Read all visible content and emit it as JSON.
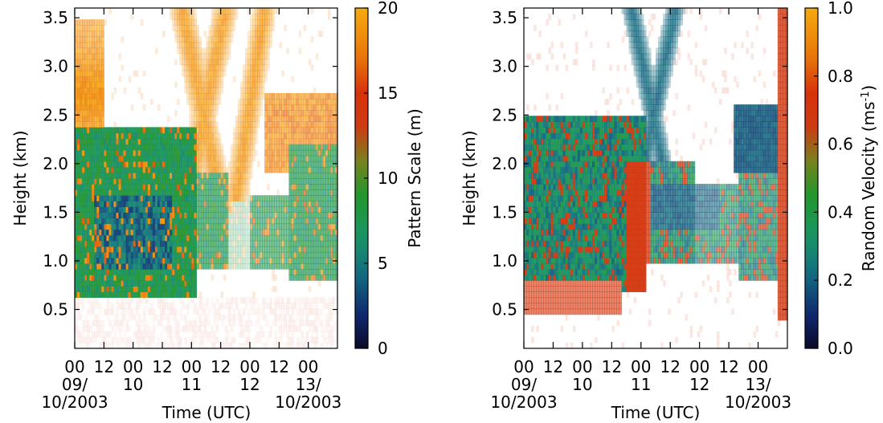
{
  "chart_data": [
    {
      "type": "heatmap",
      "title": "",
      "xlabel": "Time (UTC)",
      "ylabel": "Height (km)",
      "ylim": [
        0.1,
        3.6
      ],
      "xlim": [
        0,
        108
      ],
      "x_ticks": [
        {
          "pos": 0,
          "label": "00"
        },
        {
          "pos": 12,
          "label": "12"
        },
        {
          "pos": 24,
          "label": "00"
        },
        {
          "pos": 36,
          "label": "12"
        },
        {
          "pos": 48,
          "label": "00"
        },
        {
          "pos": 60,
          "label": "12"
        },
        {
          "pos": 72,
          "label": "00"
        },
        {
          "pos": 84,
          "label": "12"
        },
        {
          "pos": 96,
          "label": "00"
        }
      ],
      "date_labels": [
        {
          "pos": 0,
          "line1": "09/",
          "line2": "10/2003"
        },
        {
          "pos": 24,
          "line1": "10",
          "line2": ""
        },
        {
          "pos": 48,
          "line1": "11",
          "line2": ""
        },
        {
          "pos": 72,
          "line1": "12",
          "line2": ""
        },
        {
          "pos": 96,
          "line1": "13/",
          "line2": "10/2003"
        }
      ],
      "y_ticks": [
        "0.5",
        "1.0",
        "1.5",
        "2.0",
        "2.5",
        "3.0",
        "3.5"
      ],
      "y_tick_values": [
        0.5,
        1.0,
        1.5,
        2.0,
        2.5,
        3.0,
        3.5
      ],
      "colorbar": {
        "label": "Pattern Scale (m)",
        "range": [
          0,
          20
        ],
        "ticks": [
          "0",
          "5",
          "10",
          "15",
          "20"
        ],
        "tick_values": [
          0,
          5,
          10,
          15,
          20
        ]
      },
      "field": "pattern_scale"
    },
    {
      "type": "heatmap",
      "title": "",
      "xlabel": "Time (UTC)",
      "ylabel": "Height (km)",
      "ylim": [
        0.1,
        3.6
      ],
      "xlim": [
        0,
        108
      ],
      "x_ticks": [
        {
          "pos": 0,
          "label": "00"
        },
        {
          "pos": 12,
          "label": "12"
        },
        {
          "pos": 24,
          "label": "00"
        },
        {
          "pos": 36,
          "label": "12"
        },
        {
          "pos": 48,
          "label": "00"
        },
        {
          "pos": 60,
          "label": "12"
        },
        {
          "pos": 72,
          "label": "00"
        },
        {
          "pos": 84,
          "label": "12"
        },
        {
          "pos": 96,
          "label": "00"
        }
      ],
      "date_labels": [
        {
          "pos": 0,
          "line1": "09/",
          "line2": "10/2003"
        },
        {
          "pos": 24,
          "line1": "10",
          "line2": ""
        },
        {
          "pos": 48,
          "line1": "11",
          "line2": ""
        },
        {
          "pos": 72,
          "line1": "12",
          "line2": ""
        },
        {
          "pos": 96,
          "line1": "13/",
          "line2": "10/2003"
        }
      ],
      "y_ticks": [
        "0.5",
        "1.0",
        "1.5",
        "2.0",
        "2.5",
        "3.0",
        "3.5"
      ],
      "y_tick_values": [
        0.5,
        1.0,
        1.5,
        2.0,
        2.5,
        3.0,
        3.5
      ],
      "colorbar": {
        "label": "Random Velocity (ms",
        "label_sup": "-1",
        "label_end": ")",
        "range": [
          0,
          1
        ],
        "ticks": [
          "0.0",
          "0.2",
          "0.4",
          "0.6",
          "0.8",
          "1.0"
        ],
        "tick_values": [
          0.0,
          0.2,
          0.4,
          0.6,
          0.8,
          1.0
        ]
      },
      "field": "random_velocity"
    }
  ]
}
